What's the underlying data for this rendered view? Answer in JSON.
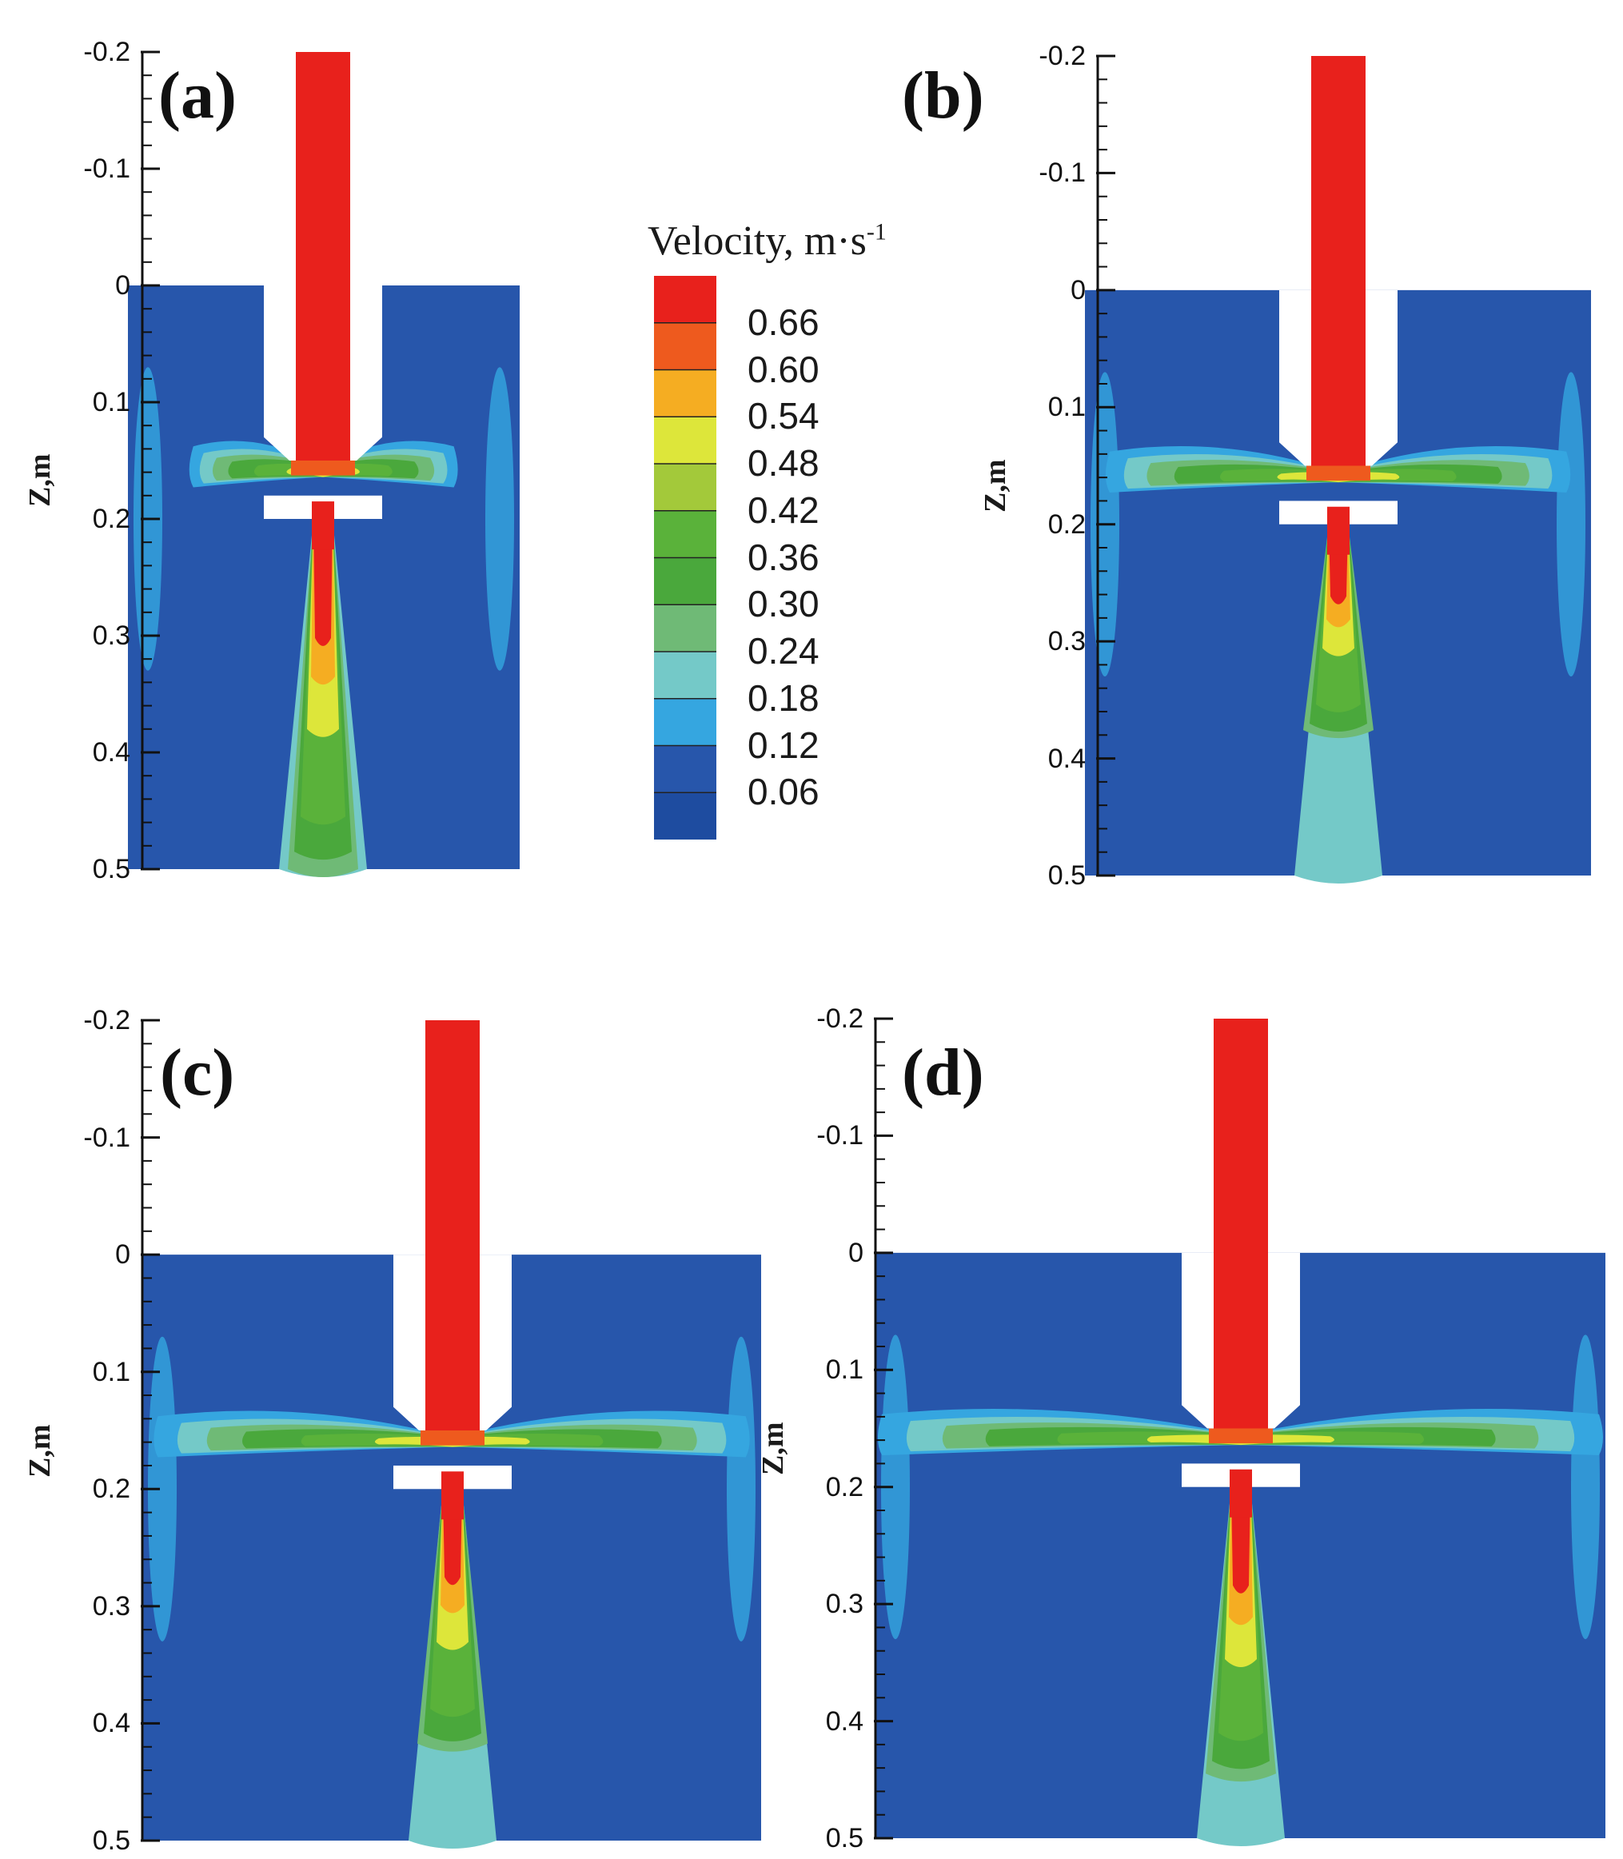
{
  "figure": {
    "colorbar": {
      "title": "Velocity,",
      "unit_main": "m·s",
      "unit_exp": "-1",
      "levels": [
        "0.66",
        "0.60",
        "0.54",
        "0.48",
        "0.42",
        "0.36",
        "0.30",
        "0.24",
        "0.18",
        "0.12",
        "0.06"
      ],
      "colors": [
        "#e8211c",
        "#ee5a1e",
        "#f5ad22",
        "#dde63a",
        "#a3c93a",
        "#5ab23a",
        "#4aa83c",
        "#6fba76",
        "#74c9c8",
        "#35a6e0",
        "#2756ab",
        "#1e4ca0"
      ]
    },
    "axis": {
      "ylabel": "Z,m",
      "ticks": [
        "-0.2",
        "-0.1",
        "0",
        "0.1",
        "0.2",
        "0.3",
        "0.4",
        "0.5"
      ]
    },
    "panels": [
      {
        "letter": "(a)"
      },
      {
        "letter": "(b)"
      },
      {
        "letter": "(c)"
      },
      {
        "letter": "(d)"
      }
    ]
  }
}
